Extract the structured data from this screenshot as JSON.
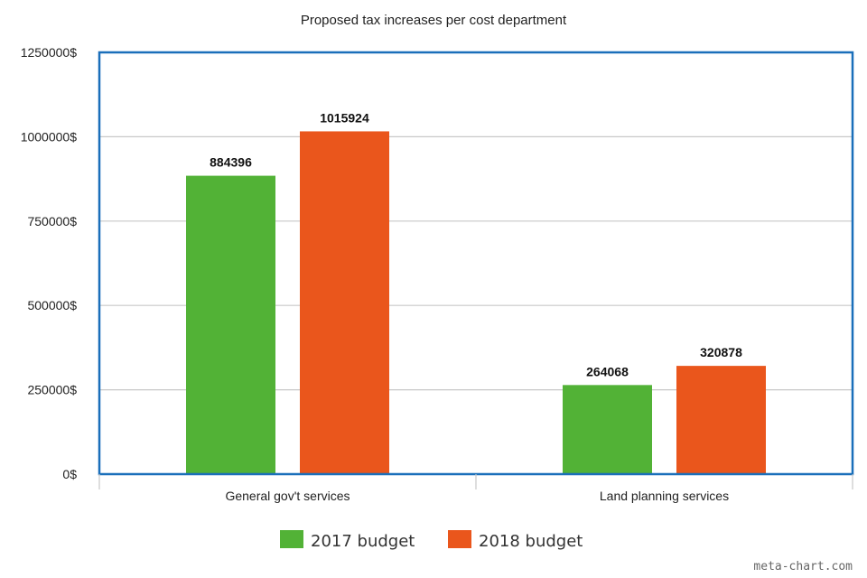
{
  "chart_data": {
    "type": "bar",
    "title": "Proposed tax increases per cost department",
    "categories": [
      "General gov't services",
      "Land planning services"
    ],
    "series": [
      {
        "name": "2017 budget",
        "color": "#52b236",
        "values": [
          884396,
          264068
        ],
        "labels": [
          "884396",
          "264068"
        ]
      },
      {
        "name": "2018 budget",
        "color": "#ea561c",
        "values": [
          1015924,
          320878
        ],
        "labels": [
          "1015924",
          "320878"
        ]
      }
    ],
    "ylim": [
      0,
      1250000
    ],
    "yticks": [
      {
        "value": 0,
        "label": "0$"
      },
      {
        "value": 250000,
        "label": "250000$"
      },
      {
        "value": 500000,
        "label": "500000$"
      },
      {
        "value": 750000,
        "label": "750000$"
      },
      {
        "value": 1000000,
        "label": "1000000$"
      },
      {
        "value": 1250000,
        "label": "1250000$"
      }
    ],
    "grid": true,
    "legend_position": "bottom",
    "plot_border_color": "#1a6fba",
    "grid_color": "#c8c8c8"
  },
  "watermark": "meta-chart.com"
}
